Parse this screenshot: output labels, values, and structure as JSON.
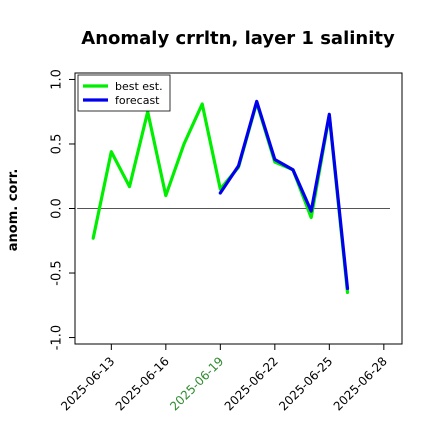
{
  "chart_data": {
    "type": "line",
    "title": "Anomaly crrltn, layer 1 salinity",
    "xlabel": "",
    "ylabel": "anom. corr.",
    "ylim": [
      -1.05,
      1.05
    ],
    "y_ticks": [
      "-1.0",
      "-0.5",
      "0.0",
      "0.5",
      "1.0"
    ],
    "y_tick_values": [
      -1.0,
      -0.5,
      0.0,
      0.5,
      1.0
    ],
    "x_tick_labels": [
      "2025-06-13",
      "2025-06-16",
      "2025-06-19",
      "2025-06-22",
      "2025-06-25",
      "2025-06-28"
    ],
    "x_tick_days": [
      13,
      16,
      19,
      22,
      25,
      28
    ],
    "highlighted_tick": "2025-06-19",
    "highlight_color": "#2e8b2e",
    "xlim_days": [
      11,
      29
    ],
    "zero_line": 0.0,
    "grid": false,
    "legend_position": "top-left",
    "x_days": [
      12,
      13,
      14,
      15,
      16,
      17,
      18,
      19,
      20,
      21,
      22,
      23,
      24,
      25,
      26
    ],
    "series": [
      {
        "name": "best est.",
        "color": "#00ee00",
        "values": [
          -0.23,
          0.44,
          0.17,
          0.75,
          0.1,
          0.5,
          0.81,
          0.15,
          0.32,
          0.82,
          0.36,
          0.3,
          -0.07,
          0.72,
          -0.65
        ]
      },
      {
        "name": "forecast",
        "color": "#0000ee",
        "values": [
          null,
          null,
          null,
          null,
          null,
          null,
          null,
          0.12,
          0.33,
          0.83,
          0.38,
          0.3,
          -0.02,
          0.73,
          -0.62
        ]
      }
    ]
  }
}
